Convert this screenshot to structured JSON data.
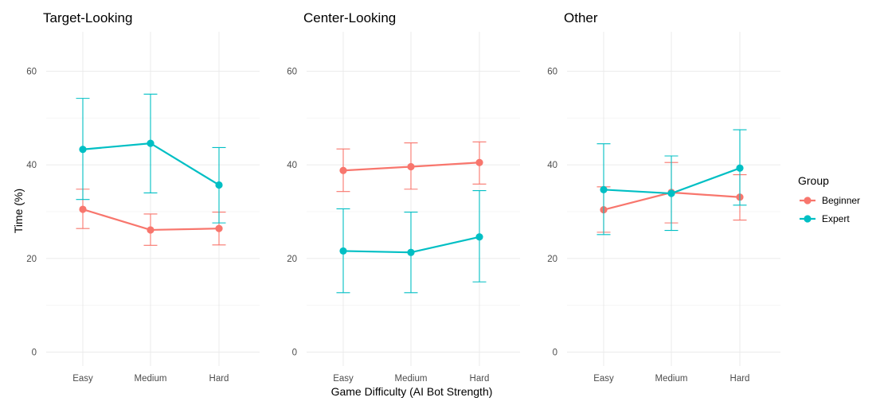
{
  "chart_data": {
    "type": "line",
    "xlabel": "Game Difficulty (AI Bot Strength)",
    "ylabel": "Time (%)",
    "ylim": [
      0,
      67
    ],
    "yticks": [
      0,
      20,
      40,
      60
    ],
    "categories": [
      "Easy",
      "Medium",
      "Hard"
    ],
    "legend": {
      "title": "Group",
      "placement": "right"
    },
    "colors": {
      "Beginner": "#f8766d",
      "Expert": "#00bfc4"
    },
    "grid": true,
    "panels": [
      {
        "title": "Target-Looking",
        "series": [
          {
            "name": "Beginner",
            "values": [
              30.5,
              26.1,
              26.4
            ],
            "lower": [
              26.4,
              22.8,
              22.9
            ],
            "upper": [
              34.8,
              29.5,
              29.9
            ]
          },
          {
            "name": "Expert",
            "values": [
              43.3,
              44.6,
              35.7
            ],
            "lower": [
              32.6,
              34.0,
              27.6
            ],
            "upper": [
              54.2,
              55.1,
              43.7
            ]
          }
        ]
      },
      {
        "title": "Center-Looking",
        "series": [
          {
            "name": "Beginner",
            "values": [
              38.8,
              39.6,
              40.5
            ],
            "lower": [
              34.3,
              34.8,
              35.9
            ],
            "upper": [
              43.4,
              44.7,
              44.9
            ]
          },
          {
            "name": "Expert",
            "values": [
              21.6,
              21.3,
              24.6
            ],
            "lower": [
              12.7,
              12.7,
              15.0
            ],
            "upper": [
              30.6,
              29.9,
              34.5
            ]
          }
        ]
      },
      {
        "title": "Other",
        "series": [
          {
            "name": "Beginner",
            "values": [
              30.4,
              34.1,
              33.1
            ],
            "lower": [
              25.6,
              27.6,
              28.2
            ],
            "upper": [
              35.3,
              40.5,
              37.9
            ]
          },
          {
            "name": "Expert",
            "values": [
              34.7,
              33.9,
              39.3
            ],
            "lower": [
              25.1,
              26.0,
              31.4
            ],
            "upper": [
              44.5,
              41.9,
              47.5
            ]
          }
        ]
      }
    ]
  }
}
